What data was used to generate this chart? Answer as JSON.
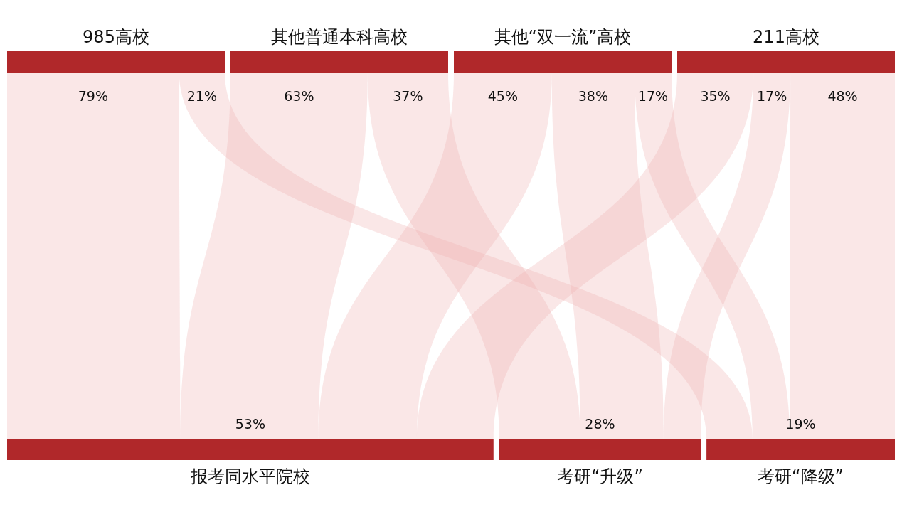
{
  "chart_data": {
    "type": "other",
    "color": "#b0282a",
    "categories": [
      "985高校",
      "其他普通本科高校",
      "其他“双一流”高校",
      "211高校"
    ],
    "series": [
      {
        "name": "报考同水平院校",
        "color": "#f0b0b0",
        "values": [
          79,
          63,
          45,
          35
        ],
        "value_labels": [
          "79%",
          "63%",
          "45%",
          "35%"
        ]
      },
      {
        "name": "考研“升级”",
        "color": "#f0b0b0",
        "values": [
          null,
          37,
          38,
          17
        ],
        "value_labels": [
          null,
          "37%",
          "38%",
          "17%"
        ]
      },
      {
        "name": "考研“降级”",
        "color": "#f0b0b0",
        "values": [
          21,
          null,
          17,
          48
        ],
        "value_labels": [
          "21%",
          null,
          "17%",
          "48%"
        ]
      }
    ],
    "totals": [
      "53%",
      "28%",
      "19%"
    ]
  }
}
